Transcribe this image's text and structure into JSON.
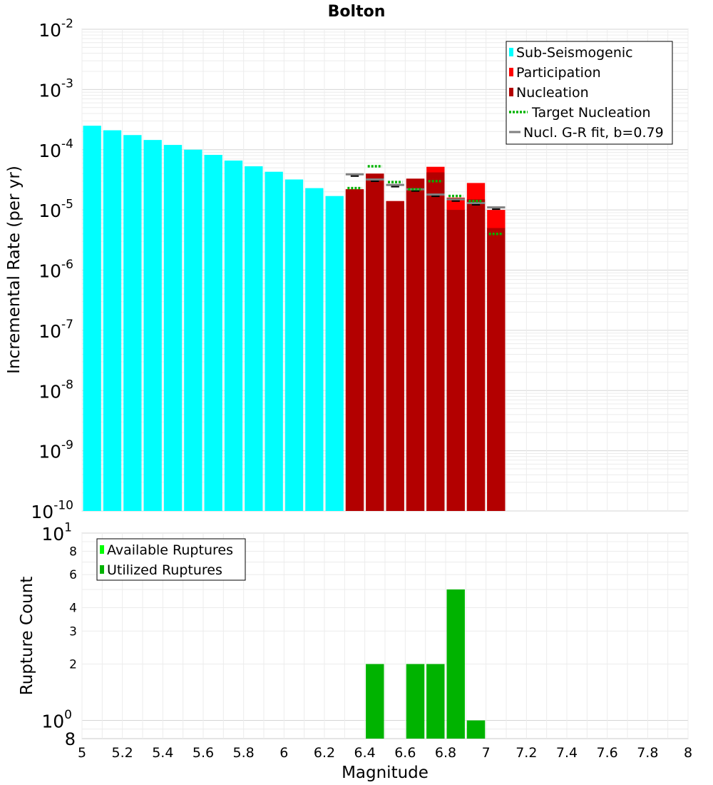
{
  "chart_data": [
    {
      "type": "bar",
      "title": "Bolton",
      "xlabel": "",
      "ylabel": "Incremental Rate (per yr)",
      "yscale": "log",
      "xlim": [
        5,
        8
      ],
      "ylim": [
        1e-10,
        0.01
      ],
      "y_ticks": [
        {
          "base": "10",
          "exp": "-10"
        },
        {
          "base": "10",
          "exp": "-9"
        },
        {
          "base": "10",
          "exp": "-8"
        },
        {
          "base": "10",
          "exp": "-7"
        },
        {
          "base": "10",
          "exp": "-6"
        },
        {
          "base": "10",
          "exp": "-5"
        },
        {
          "base": "10",
          "exp": "-4"
        },
        {
          "base": "10",
          "exp": "-3"
        },
        {
          "base": "10",
          "exp": "-2"
        }
      ],
      "grid": true,
      "legend_position": "top-right",
      "legend": [
        {
          "label": "Sub-Seismogenic",
          "color": "#00ffff",
          "style": "box"
        },
        {
          "label": "Participation",
          "color": "#ff0000",
          "style": "box"
        },
        {
          "label": "Nucleation",
          "color": "#b30000",
          "style": "box"
        },
        {
          "label": "Target Nucleation",
          "color": "#00b300",
          "style": "dotted"
        },
        {
          "label": "Nucl. G-R fit, b=0.79",
          "color": "#808080",
          "style": "line"
        }
      ],
      "series": [
        {
          "name": "Sub-Seismogenic",
          "color": "#00ffff",
          "x": [
            5.05,
            5.15,
            5.25,
            5.35,
            5.45,
            5.55,
            5.65,
            5.75,
            5.85,
            5.95,
            6.05,
            6.15,
            6.25
          ],
          "values": [
            0.00025,
            0.00021,
            0.000175,
            0.000145,
            0.00012,
            0.0001,
            8.2e-05,
            6.6e-05,
            5.3e-05,
            4.3e-05,
            3.2e-05,
            2.3e-05,
            1.7e-05
          ]
        },
        {
          "name": "Participation",
          "color": "#ff0000",
          "x": [
            6.35,
            6.45,
            6.55,
            6.65,
            6.75,
            6.85,
            6.95,
            7.05
          ],
          "values": [
            2.2e-05,
            4e-05,
            1.4e-05,
            3.3e-05,
            5.2e-05,
            1.6e-05,
            2.8e-05,
            1e-05
          ]
        },
        {
          "name": "Nucleation",
          "color": "#b30000",
          "x": [
            6.35,
            6.45,
            6.55,
            6.65,
            6.75,
            6.85,
            6.95,
            7.05
          ],
          "values": [
            2.2e-05,
            4e-05,
            1.4e-05,
            3.3e-05,
            4.2e-05,
            1e-05,
            1.5e-05,
            5e-06
          ]
        },
        {
          "name": "Target Nucleation",
          "color": "#00b300",
          "style": "dotted",
          "x": [
            6.35,
            6.45,
            6.55,
            6.65,
            6.75,
            6.85,
            6.95,
            7.05
          ],
          "values": [
            2.3e-05,
            5.3e-05,
            2.9e-05,
            2.2e-05,
            3e-05,
            1.7e-05,
            1.4e-05,
            4e-06
          ]
        },
        {
          "name": "Nucl. G-R fit, b=0.79",
          "color": "#808080",
          "style": "solid",
          "x": [
            6.35,
            6.45,
            6.55,
            6.65,
            6.75,
            6.85,
            6.95,
            7.05
          ],
          "values": [
            3.9e-05,
            3.2e-05,
            2.6e-05,
            2.2e-05,
            1.8e-05,
            1.5e-05,
            1.3e-05,
            1.1e-05
          ]
        }
      ]
    },
    {
      "type": "bar",
      "title": "",
      "xlabel": "Magnitude",
      "ylabel": "Rupture Count",
      "yscale": "log",
      "xlim": [
        5,
        8
      ],
      "ylim": [
        0.8,
        10
      ],
      "x_ticks": [
        "5",
        "5.2",
        "5.4",
        "5.6",
        "5.8",
        "6",
        "6.2",
        "6.4",
        "6.6",
        "6.8",
        "7",
        "7.2",
        "7.4",
        "7.6",
        "7.8",
        "8"
      ],
      "y_major_ticks": [
        {
          "base": "10",
          "exp": "0",
          "value": 1
        },
        {
          "base": "10",
          "exp": "1",
          "value": 10
        }
      ],
      "y_minor_ticks": [
        {
          "label": "8",
          "value": 0.8
        },
        {
          "label": "2",
          "value": 2
        },
        {
          "label": "3",
          "value": 3
        },
        {
          "label": "4",
          "value": 4
        },
        {
          "label": "6",
          "value": 6
        },
        {
          "label": "8",
          "value": 8
        }
      ],
      "grid": true,
      "legend_position": "top-left",
      "legend": [
        {
          "label": "Available Ruptures",
          "color": "#00ff00",
          "style": "box"
        },
        {
          "label": "Utilized Ruptures",
          "color": "#00b300",
          "style": "box"
        }
      ],
      "series": [
        {
          "name": "Available Ruptures",
          "color": "#00ff00",
          "x": [
            6.45,
            6.65,
            6.75,
            6.85,
            6.95
          ],
          "values": [
            2,
            2,
            2,
            5,
            1
          ]
        },
        {
          "name": "Utilized Ruptures",
          "color": "#00b300",
          "x": [
            6.45,
            6.65,
            6.75,
            6.85,
            6.95
          ],
          "values": [
            2,
            2,
            2,
            5,
            1
          ]
        }
      ]
    }
  ]
}
